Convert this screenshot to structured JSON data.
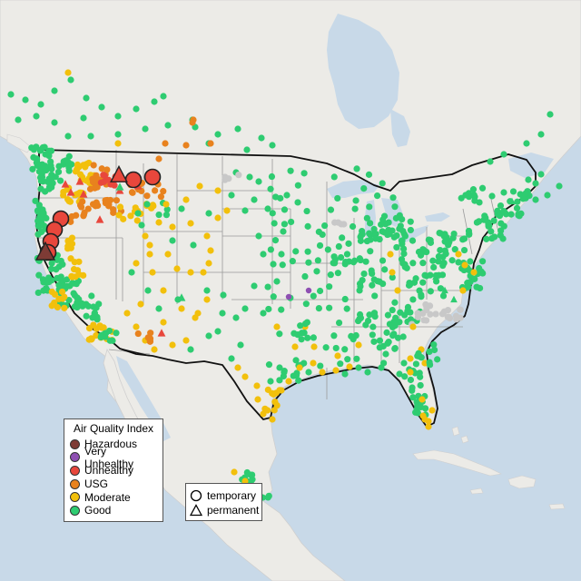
{
  "legend": {
    "title": "Air Quality Index",
    "items": [
      {
        "label": "Hazardous",
        "color": "#7e3b35"
      },
      {
        "label": "Very Unhealthy",
        "color": "#8e4fb2"
      },
      {
        "label": "Unhealthy",
        "color": "#e8473c"
      },
      {
        "label": "USG",
        "color": "#e8821e"
      },
      {
        "label": "Moderate",
        "color": "#f2c00c"
      },
      {
        "label": "Good",
        "color": "#2ecc71"
      }
    ]
  },
  "shape_legend": {
    "items": [
      {
        "label": "temporary",
        "shape": "circle"
      },
      {
        "label": "permanent",
        "shape": "triangle"
      }
    ]
  },
  "colors": {
    "water": "#c8d9e8",
    "land": "#ecebe7",
    "border": "#111111",
    "state_lines": "#9a9a9a",
    "no_data_sites": "#c8c8c8"
  }
}
